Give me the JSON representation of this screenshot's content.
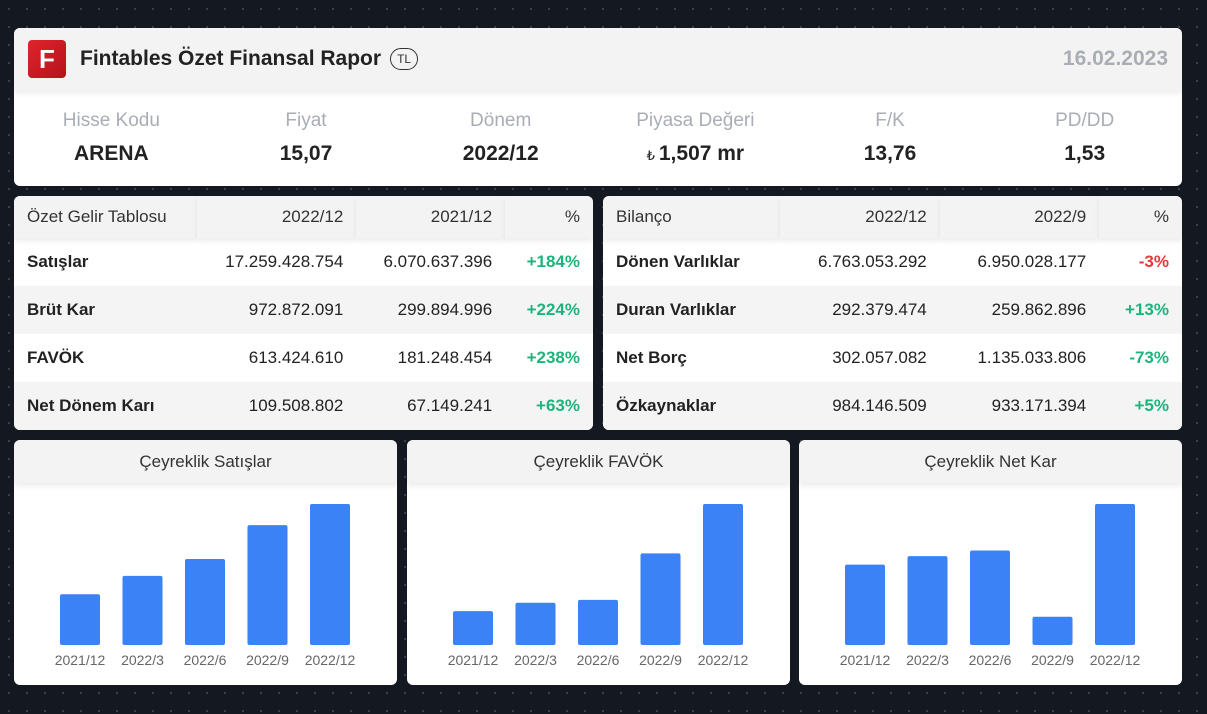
{
  "header": {
    "logo_letter": "F",
    "title": "Fintables Özet Finansal Rapor",
    "currency": "TL",
    "date": "16.02.2023"
  },
  "metrics": [
    {
      "label": "Hisse Kodu",
      "value": "ARENA"
    },
    {
      "label": "Fiyat",
      "value": "15,07"
    },
    {
      "label": "Dönem",
      "value": "2022/12"
    },
    {
      "label": "Piyasa Değeri",
      "symbol": "₺",
      "value": "1,507 mr"
    },
    {
      "label": "F/K",
      "value": "13,76"
    },
    {
      "label": "PD/DD",
      "value": "1,53"
    }
  ],
  "income_table": {
    "headers": [
      "Özet Gelir Tablosu",
      "2022/12",
      "2021/12",
      "%"
    ],
    "rows": [
      {
        "label": "Satışlar",
        "cur": "17.259.428.754",
        "prev": "6.070.637.396",
        "pct": "+184%",
        "dir": "up"
      },
      {
        "label": "Brüt Kar",
        "cur": "972.872.091",
        "prev": "299.894.996",
        "pct": "+224%",
        "dir": "up"
      },
      {
        "label": "FAVÖK",
        "cur": "613.424.610",
        "prev": "181.248.454",
        "pct": "+238%",
        "dir": "up"
      },
      {
        "label": "Net Dönem Karı",
        "cur": "109.508.802",
        "prev": "67.149.241",
        "pct": "+63%",
        "dir": "up"
      }
    ]
  },
  "balance_table": {
    "headers": [
      "Bilanço",
      "2022/12",
      "2022/9",
      "%"
    ],
    "rows": [
      {
        "label": "Dönen Varlıklar",
        "cur": "6.763.053.292",
        "prev": "6.950.028.177",
        "pct": "-3%",
        "dir": "down"
      },
      {
        "label": "Duran Varlıklar",
        "cur": "292.379.474",
        "prev": "259.862.896",
        "pct": "+13%",
        "dir": "up"
      },
      {
        "label": "Net Borç",
        "cur": "302.057.082",
        "prev": "1.135.033.806",
        "pct": "-73%",
        "dir": "up"
      },
      {
        "label": "Özkaynaklar",
        "cur": "984.146.509",
        "prev": "933.171.394",
        "pct": "+5%",
        "dir": "up"
      }
    ]
  },
  "colors": {
    "bar": "#3b82f6",
    "positive": "#1db47b",
    "negative": "#e5383b"
  },
  "chart_data": [
    {
      "type": "bar",
      "title": "Çeyreklik Satışlar",
      "categories": [
        "2021/12",
        "2022/3",
        "2022/6",
        "2022/9",
        "2022/12"
      ],
      "values": [
        0.36,
        0.49,
        0.61,
        0.85,
        1.0
      ]
    },
    {
      "type": "bar",
      "title": "Çeyreklik FAVÖK",
      "categories": [
        "2021/12",
        "2022/3",
        "2022/6",
        "2022/9",
        "2022/12"
      ],
      "values": [
        0.24,
        0.3,
        0.32,
        0.65,
        1.0
      ]
    },
    {
      "type": "bar",
      "title": "Çeyreklik Net Kar",
      "categories": [
        "2021/12",
        "2022/3",
        "2022/6",
        "2022/9",
        "2022/12"
      ],
      "values": [
        0.57,
        0.63,
        0.67,
        0.2,
        1.0
      ]
    }
  ]
}
